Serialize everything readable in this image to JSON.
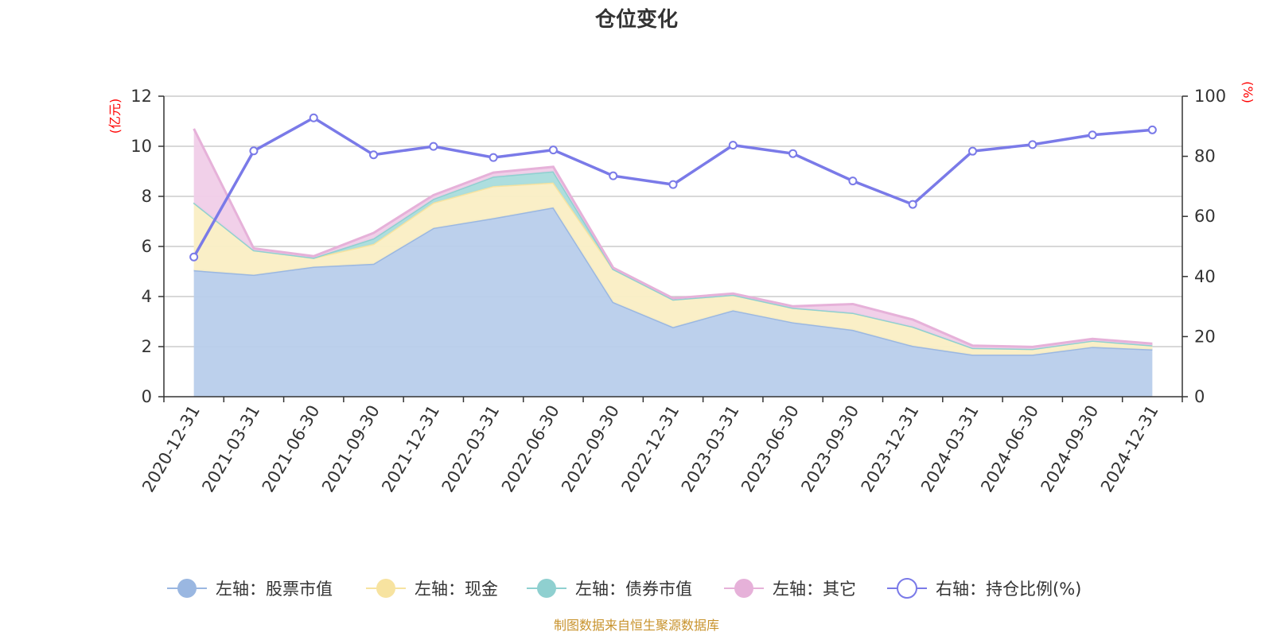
{
  "chart_data": {
    "type": "area",
    "title": "仓位变化",
    "categories": [
      "2020-12-31",
      "2021-03-31",
      "2021-06-30",
      "2021-09-30",
      "2021-12-31",
      "2022-03-31",
      "2022-06-30",
      "2022-09-30",
      "2022-12-31",
      "2023-03-31",
      "2023-06-30",
      "2023-09-30",
      "2023-12-31",
      "2024-03-31",
      "2024-06-30",
      "2024-09-30",
      "2024-12-31"
    ],
    "left_axis": {
      "unit": "(亿元)",
      "range": [
        0,
        12
      ],
      "ticks": [
        "0",
        "2",
        "4",
        "6",
        "8",
        "10",
        "12"
      ]
    },
    "right_axis": {
      "unit": "(%)",
      "range": [
        0,
        100
      ],
      "ticks": [
        "0",
        "20",
        "40",
        "60",
        "80",
        "100"
      ]
    },
    "stacked_series": [
      {
        "name": "左轴：股票市值",
        "color": "#9ab7e1",
        "fill": "#b8cdeb",
        "values": [
          5.05,
          4.87,
          5.19,
          5.31,
          6.74,
          7.13,
          7.56,
          3.78,
          2.78,
          3.45,
          2.97,
          2.67,
          2.03,
          1.68,
          1.68,
          1.99,
          1.89
        ]
      },
      {
        "name": "左轴：现金",
        "color": "#f7e3a0",
        "fill": "#faeec4",
        "values": [
          2.7,
          0.98,
          0.36,
          0.79,
          1.01,
          1.28,
          0.99,
          1.32,
          1.1,
          0.62,
          0.58,
          0.68,
          0.77,
          0.27,
          0.23,
          0.25,
          0.16
        ]
      },
      {
        "name": "左轴：债券市值",
        "color": "#8fd0d0",
        "fill": "#a9dcdc",
        "values": [
          0,
          0,
          0,
          0.22,
          0.15,
          0.38,
          0.45,
          0,
          0,
          0,
          0,
          0,
          0,
          0,
          0,
          0,
          0
        ]
      },
      {
        "name": "左轴：其它",
        "color": "#e6b1d9",
        "fill": "#f0cde8",
        "values": [
          2.95,
          0.07,
          0.06,
          0.22,
          0.15,
          0.16,
          0.18,
          0.05,
          0.05,
          0.05,
          0.06,
          0.35,
          0.28,
          0.09,
          0.08,
          0.07,
          0.07
        ]
      }
    ],
    "line_series": {
      "name": "右轴：持仓比例(%)",
      "color": "#7a7ae8",
      "values": [
        46.5,
        81.8,
        92.8,
        80.5,
        83.3,
        79.6,
        82.1,
        73.5,
        70.6,
        83.7,
        80.9,
        71.8,
        64.0,
        81.7,
        83.9,
        87.1,
        88.8
      ]
    },
    "legend_position": "bottom-center",
    "grid": true
  },
  "source_text": "制图数据来自恒生聚源数据库",
  "unit_color": "#ff0000",
  "source_color": "#c8932d"
}
